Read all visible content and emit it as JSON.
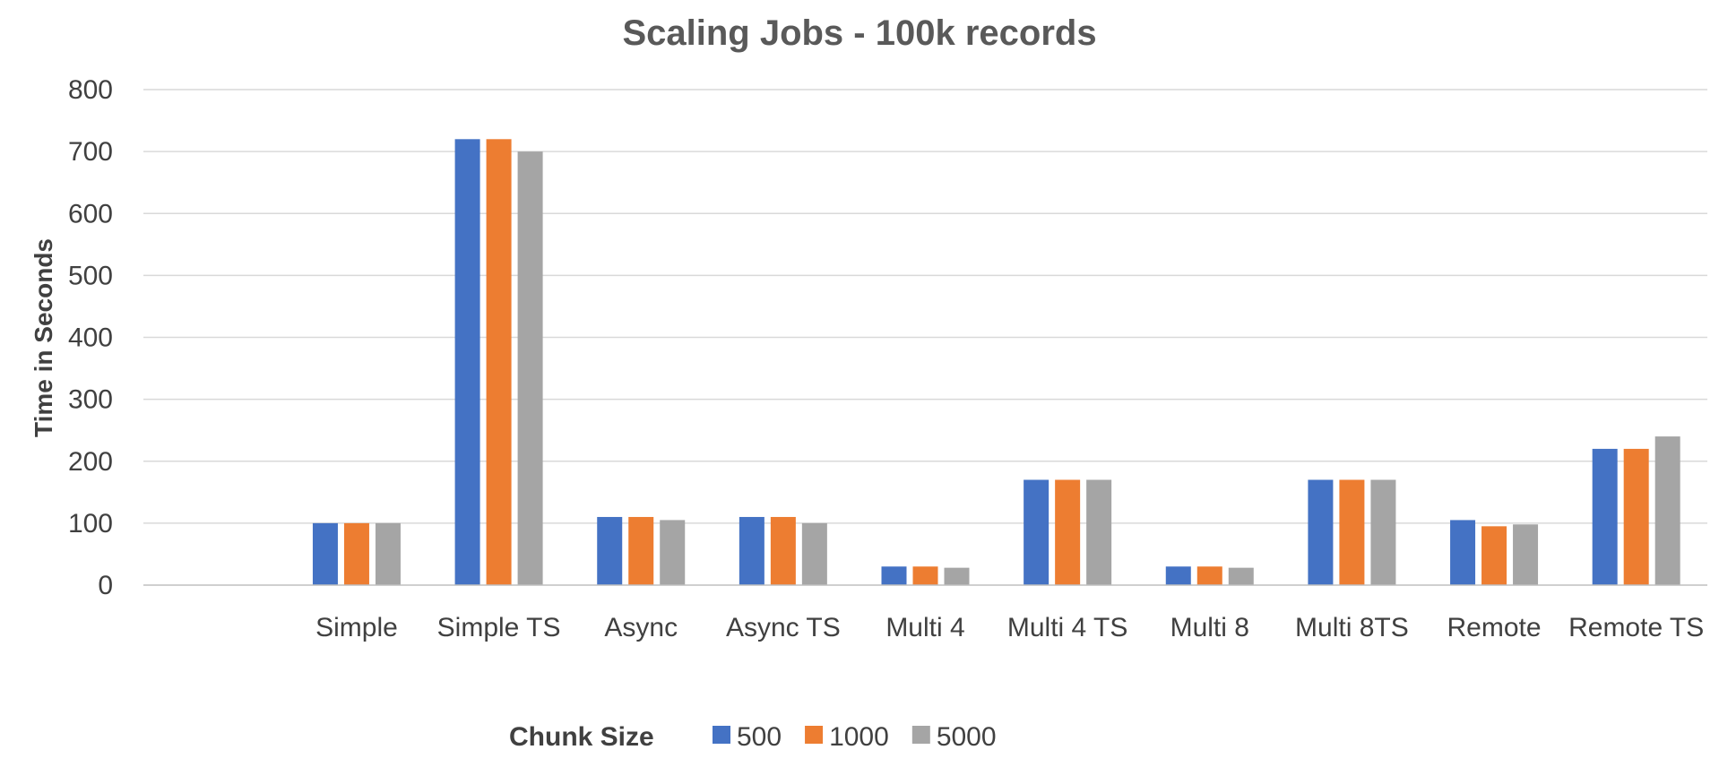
{
  "chart_data": {
    "type": "bar",
    "title": "Scaling Jobs - 100k records",
    "ylabel": "Time in Seconds",
    "xlabel": "",
    "ylim": [
      0,
      800
    ],
    "yticks": [
      0,
      100,
      200,
      300,
      400,
      500,
      600,
      700,
      800
    ],
    "grid": true,
    "legend_position": "bottom",
    "legend_title": "Chunk Size",
    "categories": [
      "Simple",
      "Simple TS",
      "Async",
      "Async TS",
      "Multi 4",
      "Multi 4 TS",
      "Multi 8",
      "Multi 8TS",
      "Remote",
      "Remote TS"
    ],
    "series": [
      {
        "name": "500",
        "color": "#4472C4",
        "values": [
          100,
          720,
          110,
          110,
          30,
          170,
          30,
          170,
          105,
          220
        ]
      },
      {
        "name": "1000",
        "color": "#ED7D31",
        "values": [
          100,
          720,
          110,
          110,
          30,
          170,
          30,
          170,
          95,
          220
        ]
      },
      {
        "name": "5000",
        "color": "#A5A5A5",
        "values": [
          100,
          700,
          105,
          100,
          28,
          170,
          28,
          170,
          98,
          240
        ]
      }
    ]
  }
}
